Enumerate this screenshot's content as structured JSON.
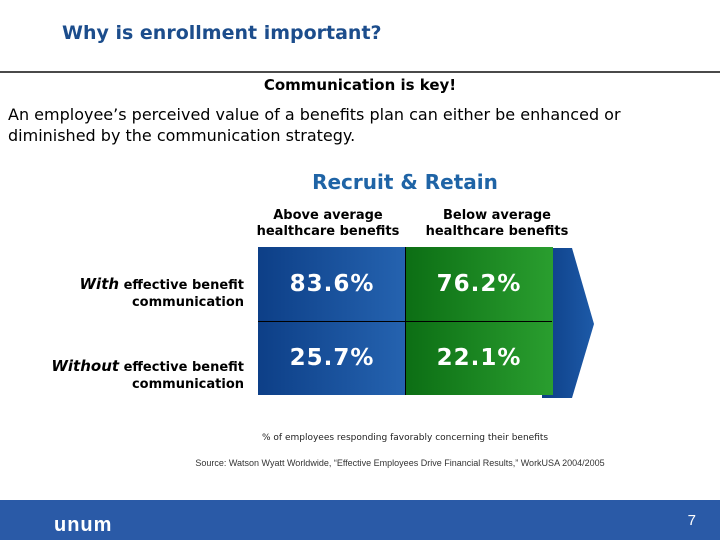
{
  "header": {
    "title": "Why is enrollment important?"
  },
  "intro": {
    "heading": "Communication is key!",
    "body": "An employee’s perceived value of a benefits plan can either be enhanced or diminished by the communication strategy."
  },
  "section": {
    "title": "Recruit & Retain",
    "columns": [
      "Above average healthcare benefits",
      "Below average healthcare benefits"
    ],
    "rows": [
      {
        "label_em": "With",
        "label_rest": " effective benefit communication",
        "values": [
          "83.6%",
          "76.2%"
        ]
      },
      {
        "label_em": "Without",
        "label_rest": " effective benefit communication",
        "values": [
          "25.7%",
          "22.1%"
        ]
      }
    ],
    "note": "% of employees responding favorably concerning their benefits"
  },
  "source": "Source: Watson Wyatt Worldwide, “Effective Employees Drive Financial Results,” WorkUSA 2004/2005",
  "footer": {
    "logo": "unum",
    "page": "7"
  },
  "colors": {
    "blue": "#1a4f9c",
    "green": "#1d8a22",
    "title": "#1c4d8c",
    "accent": "#1f64a6",
    "footer": "#2a5aa7"
  }
}
